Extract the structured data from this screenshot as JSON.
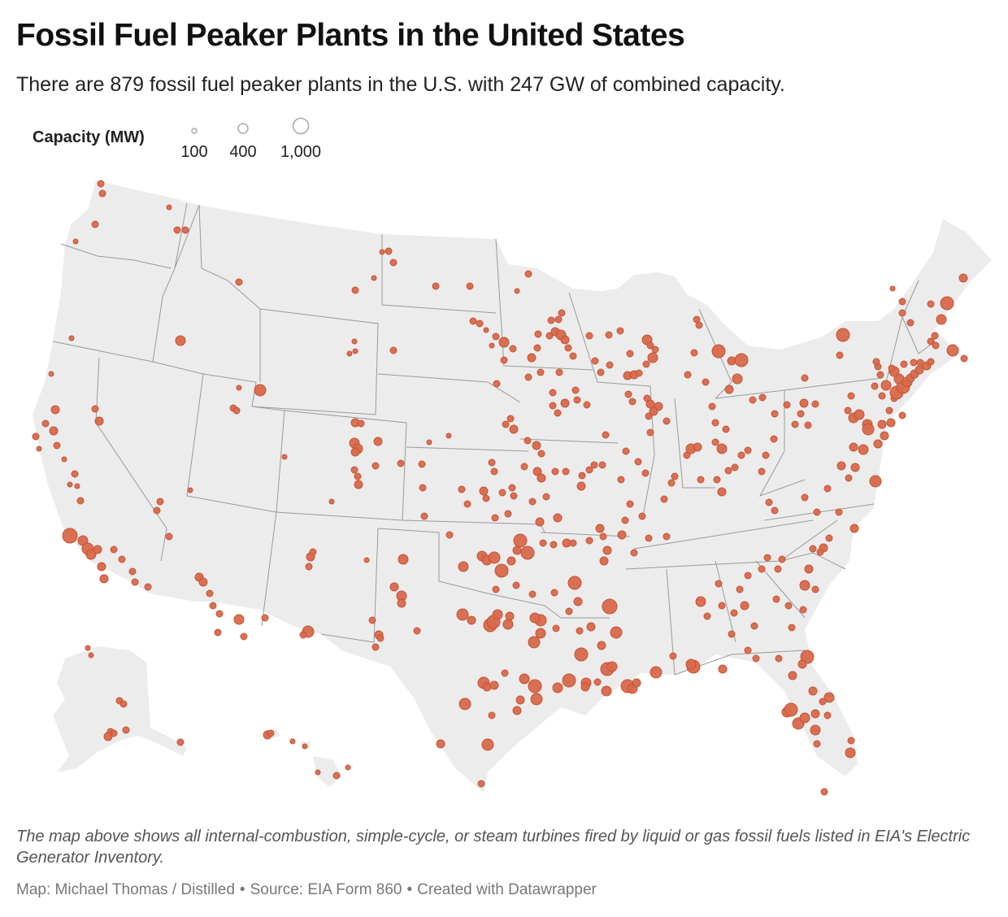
{
  "title": "Fossil Fuel Peaker Plants in the United States",
  "subtitle": "There are 879 fossil fuel peaker plants in the U.S. with 247 GW of combined capacity.",
  "legend": {
    "title": "Capacity (MW)",
    "items": [
      {
        "value": 100,
        "label": "100"
      },
      {
        "value": 400,
        "label": "400"
      },
      {
        "value": 1000,
        "label": "1,000"
      }
    ]
  },
  "colors": {
    "land": "#ececec",
    "border": "#9a9a9a",
    "marker_fill": "#d9694b",
    "marker_stroke": "#c45437",
    "legend_stroke": "#aaaaaa"
  },
  "notes": "The map above shows all internal-combustion, simple-cycle, or steam turbines fired by liquid or gas fossil fuels listed in EIA's Electric Generator Inventory.",
  "footer": {
    "byline": "Map: Michael Thomas / Distilled",
    "source": "Source: EIA Form 860",
    "credit": "Created with Datawrapper"
  }
}
